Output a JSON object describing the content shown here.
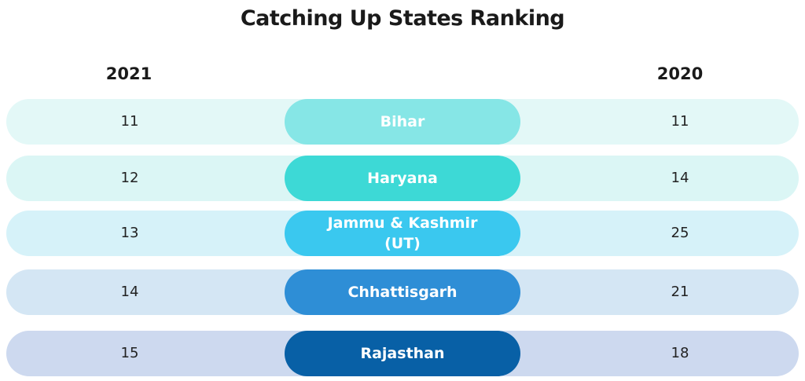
{
  "title": "Catching Up States Ranking",
  "headers": {
    "left": "2021",
    "right": "2020"
  },
  "rows": [
    {
      "state": "Bihar",
      "rank_2021": "11",
      "rank_2020": "11",
      "row_color": "#e3f8f7",
      "pill_color": "#86e6e6"
    },
    {
      "state": "Haryana",
      "rank_2021": "12",
      "rank_2020": "14",
      "row_color": "#dbf6f5",
      "pill_color": "#3dd9d6"
    },
    {
      "state": "Jammu & Kashmir\n(UT)",
      "rank_2021": "13",
      "rank_2020": "25",
      "row_color": "#d6f2f9",
      "pill_color": "#3ac8ef"
    },
    {
      "state": "Chhattisgarh",
      "rank_2021": "14",
      "rank_2020": "21",
      "row_color": "#d4e6f4",
      "pill_color": "#2e8ed6"
    },
    {
      "state": "Rajasthan",
      "rank_2021": "15",
      "rank_2020": "18",
      "row_color": "#cdd9ef",
      "pill_color": "#0860a6"
    }
  ]
}
